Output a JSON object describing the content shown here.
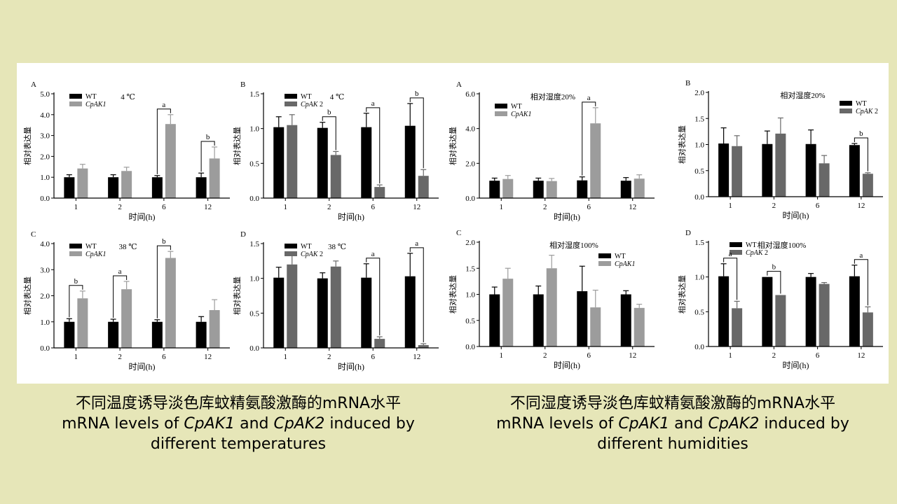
{
  "captions": {
    "left": {
      "zh": "不同温度诱导淡色库蚊精氨酸激酶的mRNA水平",
      "en_prefix": "mRNA levels of ",
      "en_gene1": "CpAK1",
      "en_and": " and ",
      "en_gene2": "CpAK2",
      "en_suffix": " induced by",
      "en_line2": "different temperatures"
    },
    "right": {
      "zh": "不同湿度诱导淡色库蚊精氨酸激酶的mRNA水平",
      "en_prefix": "mRNA levels of ",
      "en_gene1": "CpAK1",
      "en_and": " and ",
      "en_gene2": "CpAK2",
      "en_suffix": " induced by",
      "en_line2": "different humidities"
    }
  },
  "colors": {
    "background": "#e6e6b8",
    "wt": "#000000",
    "cpak1": "#9c9c9c",
    "cpak2": "#686868"
  },
  "chart_data": [
    {
      "id": "temp-A",
      "type": "bar",
      "panel_letter": "A",
      "title": "4 ℃",
      "xlabel": "时间(h)",
      "ylabel": "相对表达量",
      "categories": [
        "1",
        "2",
        "6",
        "12"
      ],
      "ylim": [
        0,
        5.0
      ],
      "yticks": [
        "0.0",
        "1.0",
        "2.0",
        "3.0",
        "4.0",
        "5.0"
      ],
      "legend_pos": "top-left",
      "series": [
        {
          "name": "WT",
          "values": [
            1.0,
            1.0,
            1.0,
            1.0
          ],
          "errors": [
            0.12,
            0.12,
            0.08,
            0.2
          ]
        },
        {
          "name": "CpAK1",
          "italic": true,
          "values": [
            1.42,
            1.3,
            3.55,
            1.9
          ],
          "errors": [
            0.2,
            0.18,
            0.45,
            0.55
          ]
        }
      ],
      "annotations": [
        {
          "cat": 2,
          "label": "a"
        },
        {
          "cat": 3,
          "label": "b"
        }
      ]
    },
    {
      "id": "temp-B",
      "type": "bar",
      "panel_letter": "B",
      "title": "4 ℃",
      "xlabel": "时间(h)",
      "ylabel": "相对表达量",
      "categories": [
        "1",
        "2",
        "6",
        "12"
      ],
      "ylim": [
        0,
        1.5
      ],
      "yticks": [
        "0.0",
        "0.5",
        "1.0",
        "1.5"
      ],
      "legend_pos": "top-center",
      "series": [
        {
          "name": "WT",
          "values": [
            1.02,
            1.01,
            1.02,
            1.04
          ],
          "errors": [
            0.15,
            0.08,
            0.2,
            0.32
          ]
        },
        {
          "name": "CpAK 2",
          "italic_part": "CpAK",
          "values": [
            1.05,
            0.62,
            0.16,
            0.32
          ],
          "errors": [
            0.15,
            0.05,
            0.03,
            0.09
          ]
        }
      ],
      "annotations": [
        {
          "cat": 1,
          "label": "b"
        },
        {
          "cat": 2,
          "label": "a"
        },
        {
          "cat": 3,
          "label": "b"
        }
      ]
    },
    {
      "id": "temp-C",
      "type": "bar",
      "panel_letter": "C",
      "title": "38 ℃",
      "xlabel": "时间(h)",
      "ylabel": "相对表达量",
      "categories": [
        "1",
        "2",
        "6",
        "12"
      ],
      "ylim": [
        0,
        4.0
      ],
      "yticks": [
        "0.0",
        "1.0",
        "2.0",
        "3.0",
        "4.0"
      ],
      "legend_pos": "top-left",
      "series": [
        {
          "name": "WT",
          "values": [
            1.0,
            1.0,
            1.0,
            1.0
          ],
          "errors": [
            0.12,
            0.1,
            0.08,
            0.2
          ]
        },
        {
          "name": "CpAK1",
          "italic": true,
          "values": [
            1.9,
            2.25,
            3.45,
            1.45
          ],
          "errors": [
            0.28,
            0.3,
            0.25,
            0.4
          ]
        }
      ],
      "annotations": [
        {
          "cat": 0,
          "label": "b"
        },
        {
          "cat": 1,
          "label": "a"
        },
        {
          "cat": 2,
          "label": "b"
        }
      ]
    },
    {
      "id": "temp-D",
      "type": "bar",
      "panel_letter": "D",
      "title": "38 ℃",
      "xlabel": "时间(h)",
      "ylabel": "相对表达量",
      "categories": [
        "1",
        "2",
        "6",
        "12"
      ],
      "ylim": [
        0,
        1.5
      ],
      "yticks": [
        "0.0",
        "0.5",
        "1.0",
        "1.5"
      ],
      "legend_pos": "top-center",
      "series": [
        {
          "name": "WT",
          "values": [
            1.01,
            1.0,
            1.01,
            1.03
          ],
          "errors": [
            0.15,
            0.08,
            0.2,
            0.33
          ]
        },
        {
          "name": "CpAK 2",
          "italic_part": "CpAK",
          "values": [
            1.2,
            1.17,
            0.13,
            0.04
          ],
          "errors": [
            0.18,
            0.08,
            0.03,
            0.02
          ]
        }
      ],
      "annotations": [
        {
          "cat": 2,
          "label": "a"
        },
        {
          "cat": 3,
          "label": "a"
        }
      ]
    },
    {
      "id": "hum-A",
      "type": "bar",
      "panel_letter": "A",
      "title": "相对湿度20%",
      "xlabel": "时间(h)",
      "ylabel": "相对表达量",
      "categories": [
        "1",
        "2",
        "6",
        "12"
      ],
      "ylim": [
        0,
        6.0
      ],
      "yticks": [
        "0.0",
        "2.0",
        "4.0",
        "6.0"
      ],
      "legend_pos": "top-left",
      "series": [
        {
          "name": "WT",
          "values": [
            1.0,
            1.0,
            1.02,
            1.0
          ],
          "errors": [
            0.15,
            0.15,
            0.2,
            0.18
          ]
        },
        {
          "name": "CpAK1",
          "italic": true,
          "values": [
            1.1,
            0.98,
            4.3,
            1.12
          ],
          "errors": [
            0.2,
            0.15,
            0.9,
            0.22
          ]
        }
      ],
      "annotations": [
        {
          "cat": 2,
          "label": "a"
        }
      ]
    },
    {
      "id": "hum-B",
      "type": "bar",
      "panel_letter": "B",
      "title": "相对湿度20%",
      "xlabel": "时间(h)",
      "ylabel": "相对表达量",
      "categories": [
        "1",
        "2",
        "6",
        "12"
      ],
      "ylim": [
        0,
        2.0
      ],
      "yticks": [
        "0.0",
        "0.5",
        "1.0",
        "1.5",
        "2.0"
      ],
      "legend_pos": "top-right",
      "series": [
        {
          "name": "WT",
          "values": [
            1.02,
            1.01,
            1.01,
            0.99
          ],
          "errors": [
            0.3,
            0.25,
            0.27,
            0.03
          ]
        },
        {
          "name": "CpAK 2",
          "italic_part": "CpAK",
          "values": [
            0.97,
            1.21,
            0.64,
            0.44
          ],
          "errors": [
            0.2,
            0.3,
            0.15,
            0.02
          ]
        }
      ],
      "annotations": [
        {
          "cat": 3,
          "label": "b"
        }
      ]
    },
    {
      "id": "hum-C",
      "type": "bar",
      "panel_letter": "C",
      "title": "相对湿度100%",
      "xlabel": "时间(h)",
      "ylabel": "相对表达量",
      "categories": [
        "1",
        "2",
        "6",
        "12"
      ],
      "ylim": [
        0,
        2.0
      ],
      "yticks": [
        "0.0",
        "0.5",
        "1.0",
        "1.5",
        "2.0"
      ],
      "legend_pos": "top-right",
      "series": [
        {
          "name": "WT",
          "values": [
            1.0,
            1.0,
            1.06,
            1.0
          ],
          "errors": [
            0.14,
            0.16,
            0.48,
            0.07
          ]
        },
        {
          "name": "CpAK1",
          "italic": true,
          "values": [
            1.3,
            1.5,
            0.75,
            0.74
          ],
          "errors": [
            0.2,
            0.25,
            0.33,
            0.07
          ]
        }
      ],
      "annotations": []
    },
    {
      "id": "hum-D",
      "type": "bar",
      "panel_letter": "D",
      "title": "相对湿度100%",
      "xlabel": "时间(h)",
      "ylabel": "相对表达量",
      "categories": [
        "1",
        "2",
        "6",
        "12"
      ],
      "ylim": [
        0,
        1.5
      ],
      "yticks": [
        "0.0",
        "0.5",
        "1.0",
        "1.5"
      ],
      "legend_pos": "top-center",
      "series": [
        {
          "name": "WT",
          "values": [
            1.01,
            1.0,
            1.0,
            1.01
          ],
          "errors": [
            0.18,
            0.0,
            0.05,
            0.16
          ]
        },
        {
          "name": "CpAK 2",
          "italic_part": "CpAK",
          "values": [
            0.55,
            0.74,
            0.9,
            0.49
          ],
          "errors": [
            0.1,
            0.0,
            0.02,
            0.08
          ]
        }
      ],
      "annotations": [
        {
          "cat": 0,
          "label": "a"
        },
        {
          "cat": 1,
          "label": "b"
        },
        {
          "cat": 3,
          "label": "a"
        }
      ]
    }
  ]
}
